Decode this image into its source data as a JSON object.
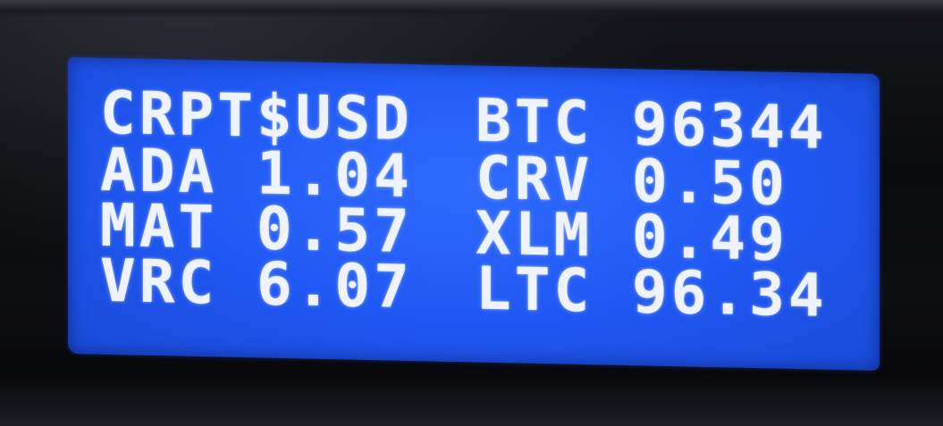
{
  "display": {
    "rows": [
      {
        "left": "CRPT$USD",
        "right": "BTC 96344"
      },
      {
        "left": "ADA 1.04",
        "right": "CRV 0.50"
      },
      {
        "left": "MAT 0.57",
        "right": "XLM 0.49"
      },
      {
        "left": "VRC 6.07",
        "right": "LTC 96.34"
      }
    ],
    "backlight_color": "#1f57f2",
    "text_color": "#eef3ff"
  }
}
